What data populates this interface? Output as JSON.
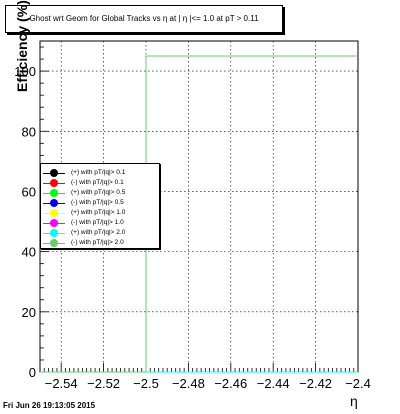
{
  "chart_data": {
    "type": "line",
    "title": "Ghost wrt Geom for Global Tracks vs  η at | η |<= 1.0 at pT > 0.11",
    "xlabel": "η",
    "ylabel": "Efficiency (%)",
    "xlim": [
      -2.55,
      -2.4
    ],
    "ylim": [
      0,
      110
    ],
    "x_ticks": [
      -2.54,
      -2.52,
      -2.5,
      -2.48,
      -2.46,
      -2.44,
      -2.42,
      -2.4
    ],
    "x_tick_labels": [
      "−2.54",
      "−2.52",
      "−2.5",
      "−2.48",
      "−2.46",
      "−2.44",
      "−2.42",
      "−2.4"
    ],
    "y_ticks": [
      0,
      20,
      40,
      60,
      80
    ],
    "y_tick_labels": [
      "0",
      "20",
      "40",
      "60",
      "80"
    ],
    "grid": true,
    "legend_position": "center-left",
    "series": [
      {
        "name": "(+) with pT/|q|> 0.1",
        "color": "#000000",
        "x": [
          -2.55,
          -2.5,
          -2.5,
          -2.4
        ],
        "values": [
          0,
          0,
          0,
          0
        ]
      },
      {
        "name": "(-) with pT/|q|> 0.1",
        "color": "#ff0000",
        "x": [
          -2.55,
          -2.5,
          -2.5,
          -2.4
        ],
        "values": [
          0,
          0,
          0,
          0
        ]
      },
      {
        "name": "(+) with pT/|q|> 0.5",
        "color": "#00ff00",
        "x": [
          -2.55,
          -2.5,
          -2.5,
          -2.4
        ],
        "values": [
          0,
          0,
          0,
          0
        ]
      },
      {
        "name": "(-) with pT/|q|> 0.5",
        "color": "#0000ff",
        "x": [
          -2.55,
          -2.5,
          -2.5,
          -2.4
        ],
        "values": [
          0,
          0,
          0,
          0
        ]
      },
      {
        "name": "(+) with pT/|q|> 1.0",
        "color": "#ffff00",
        "x": [
          -2.55,
          -2.5,
          -2.5,
          -2.4
        ],
        "values": [
          0,
          0,
          0,
          0
        ]
      },
      {
        "name": "(-) with pT/|q|> 1.0",
        "color": "#ff00ff",
        "x": [
          -2.55,
          -2.5,
          -2.5,
          -2.4
        ],
        "values": [
          0,
          0,
          0,
          0
        ]
      },
      {
        "name": "(+) with pT/|q|> 2.0",
        "color": "#00ffff",
        "x": [
          -2.55,
          -2.5,
          -2.5,
          -2.4
        ],
        "values": [
          0,
          0,
          0,
          0
        ]
      },
      {
        "name": "(-) with pT/|q|> 2.0",
        "color": "#66cc66",
        "x": [
          -2.55,
          -2.5,
          -2.5,
          -2.4
        ],
        "values": [
          0,
          0,
          105,
          105
        ]
      }
    ]
  },
  "footer": {
    "timestamp": "Fri Jun 26 19:13:05 2015"
  }
}
